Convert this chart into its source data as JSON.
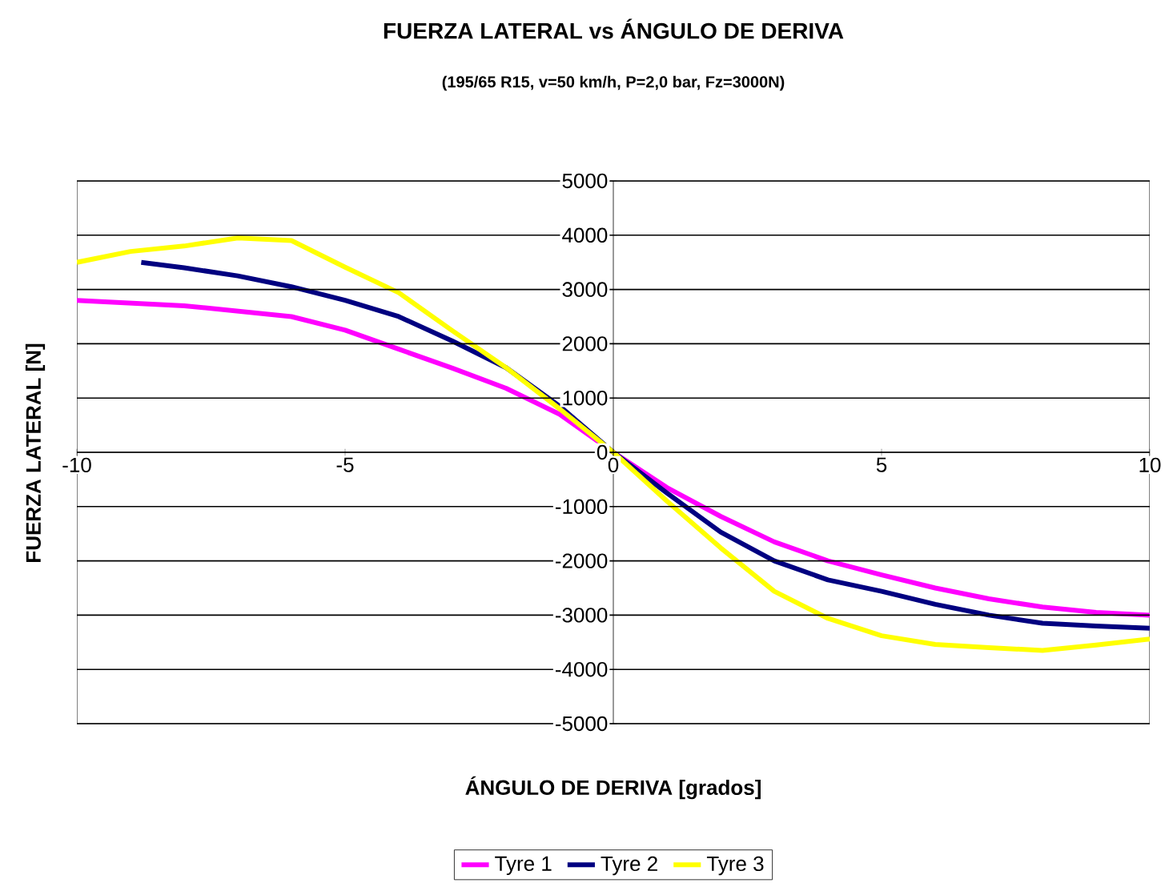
{
  "chart_data": {
    "type": "line",
    "title": "FUERZA LATERAL vs ÁNGULO DE DERIVA",
    "subtitle": "(195/65 R15, v=50 km/h, P=2,0 bar, Fz=3000N)",
    "xlabel": "ÁNGULO DE DERIVA [grados]",
    "ylabel": "FUERZA LATERAL [N]",
    "xlim": [
      -10,
      10
    ],
    "ylim": [
      -5000,
      5000
    ],
    "xticks": [
      -10,
      -5,
      0,
      5,
      10
    ],
    "yticks": [
      -5000,
      -4000,
      -3000,
      -2000,
      -1000,
      0,
      1000,
      2000,
      3000,
      4000,
      5000
    ],
    "grid": "y",
    "legend": "bottom",
    "series": [
      {
        "name": "Tyre 1",
        "color": "#ff00ff",
        "x": [
          -10,
          -8,
          -6,
          -5,
          -4,
          -3,
          -2,
          -1,
          0,
          1,
          2,
          3,
          4,
          5,
          6,
          7,
          8,
          9,
          10
        ],
        "values": [
          2800,
          2700,
          2500,
          2250,
          1900,
          1550,
          1180,
          700,
          0,
          -650,
          -1180,
          -1650,
          -2000,
          -2260,
          -2500,
          -2700,
          -2850,
          -2950,
          -3000
        ]
      },
      {
        "name": "Tyre 2",
        "color": "#000080",
        "x": [
          -8.8,
          -8,
          -7,
          -6,
          -5,
          -4,
          -3,
          -2,
          -1,
          0,
          1,
          2,
          3,
          4,
          5,
          6,
          7,
          8,
          9,
          10
        ],
        "values": [
          3500,
          3400,
          3250,
          3050,
          2800,
          2500,
          2050,
          1560,
          850,
          0,
          -750,
          -1470,
          -2000,
          -2350,
          -2560,
          -2800,
          -3000,
          -3150,
          -3200,
          -3240
        ]
      },
      {
        "name": "Tyre 3",
        "color": "#ffff00",
        "x": [
          -10,
          -9,
          -8,
          -7,
          -6,
          -5,
          -4,
          -3,
          -2,
          -1,
          0,
          1,
          2,
          3,
          4,
          5,
          6,
          7,
          8,
          9,
          10
        ],
        "values": [
          3500,
          3700,
          3800,
          3950,
          3900,
          3410,
          2940,
          2240,
          1560,
          800,
          0,
          -900,
          -1760,
          -2560,
          -3060,
          -3380,
          -3540,
          -3600,
          -3650,
          -3550,
          -3440
        ]
      }
    ]
  }
}
